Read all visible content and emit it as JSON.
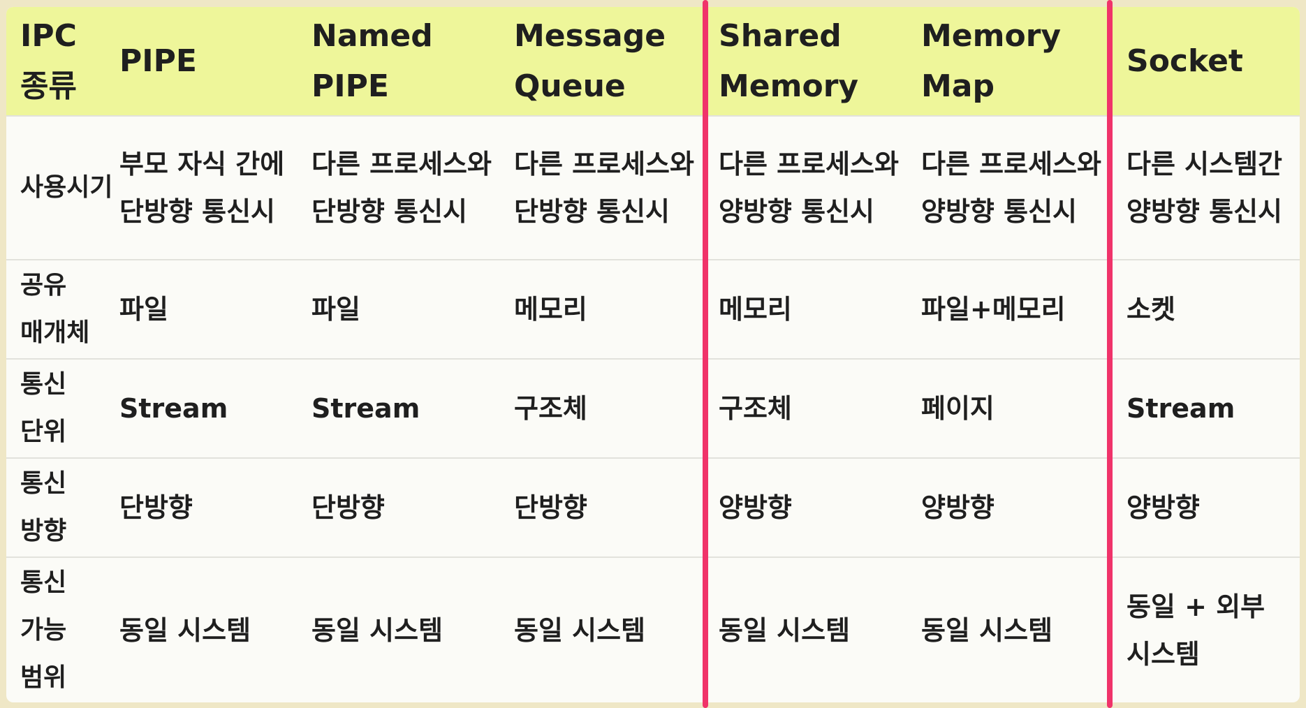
{
  "header": {
    "label": "IPC 종류",
    "cols": [
      "PIPE",
      "Named PIPE",
      "Message Queue",
      "Shared Memory",
      "Memory Map",
      "Socket"
    ]
  },
  "rows": [
    {
      "label": "사용시기",
      "cells": [
        "부모 자식 간에 단방향 통신시",
        "다른 프로세스와 단방향 통신시",
        "다른 프로세스와 단방향 통신시",
        "다른 프로세스와 양방향 통신시",
        "다른 프로세스와 양방향 통신시",
        "다른 시스템간 양방향 통신시"
      ]
    },
    {
      "label": "공유 매개체",
      "cells": [
        "파일",
        "파일",
        "메모리",
        "메모리",
        "파일+메모리",
        "소켓"
      ]
    },
    {
      "label": "통신 단위",
      "cells": [
        "Stream",
        "Stream",
        "구조체",
        "구조체",
        "페이지",
        "Stream"
      ]
    },
    {
      "label": "통신 방향",
      "cells": [
        "단방향",
        "단방향",
        "단방향",
        "양방향",
        "양방향",
        "양방향"
      ]
    },
    {
      "label": "통신 가능 범위",
      "cells": [
        "동일 시스템",
        "동일 시스템",
        "동일 시스템",
        "동일 시스템",
        "동일 시스템",
        "동일 + 외부 시스템"
      ]
    }
  ],
  "colors": {
    "header_bg": "#eef69a",
    "highlight_line": "#f0336a",
    "frame_bg": "#efe7c6"
  }
}
